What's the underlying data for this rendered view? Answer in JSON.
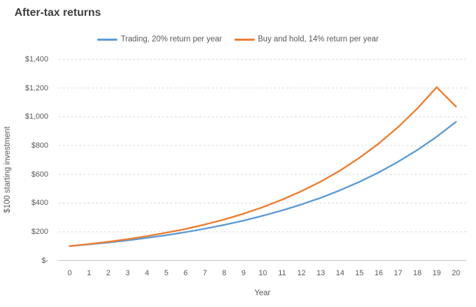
{
  "title": "After-tax returns",
  "colors": {
    "trading_line": "#5B9BD5",
    "buy_hold_line": "#ED7D31",
    "gridline": "#D9D9D9",
    "axis_line": "#BFBFBF",
    "tick_text": "#595959",
    "title_text": "#3F3F3F"
  },
  "chart_data": {
    "type": "line",
    "title": "After-tax returns",
    "xlabel": "Year",
    "ylabel": "$100 starting investment",
    "x": [
      0,
      1,
      2,
      3,
      4,
      5,
      6,
      7,
      8,
      9,
      10,
      11,
      12,
      13,
      14,
      15,
      16,
      17,
      18,
      19,
      20
    ],
    "series": [
      {
        "name": "Trading, 20% return per year",
        "color": "#5B9BD5",
        "values": [
          100,
          112,
          125,
          140,
          157,
          176,
          197,
          221,
          248,
          277,
          311,
          348,
          390,
          436,
          489,
          547,
          613,
          687,
          769,
          861,
          965
        ]
      },
      {
        "name": "Buy and hold, 14% return per year",
        "color": "#ED7D31",
        "values": [
          100,
          114,
          130,
          148,
          169,
          193,
          219,
          250,
          285,
          325,
          371,
          423,
          482,
          549,
          626,
          714,
          814,
          928,
          1058,
          1206,
          1071
        ]
      }
    ],
    "ylim": [
      0,
      1400
    ],
    "ytick_step": 200,
    "y_tick_labels": [
      "$-",
      "$200",
      "$400",
      "$600",
      "$800",
      "$1,000",
      "$1,200",
      "$1,400"
    ],
    "grid": true,
    "legend_position": "top"
  }
}
